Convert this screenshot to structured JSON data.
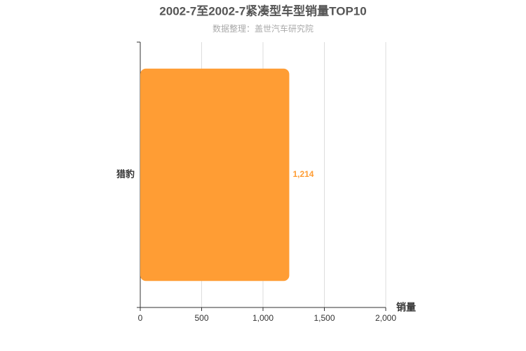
{
  "chart_data": {
    "type": "bar",
    "orientation": "horizontal",
    "title": "2002-7至2002-7紧凑型车型销量TOP10",
    "subtitle": "数据整理：盖世汽车研究院",
    "x_label": "销量",
    "categories": [
      "猎豹"
    ],
    "values": [
      1214
    ],
    "value_labels": [
      "1,214"
    ],
    "color": "#ff9d34",
    "xlim": [
      0,
      2000
    ],
    "xticks": [
      0,
      500,
      {
        "value": 1000,
        "label": "1,000"
      },
      {
        "value": 1500,
        "label": "1,500"
      },
      {
        "value": 2000,
        "label": "2,000"
      }
    ],
    "grid": true
  }
}
